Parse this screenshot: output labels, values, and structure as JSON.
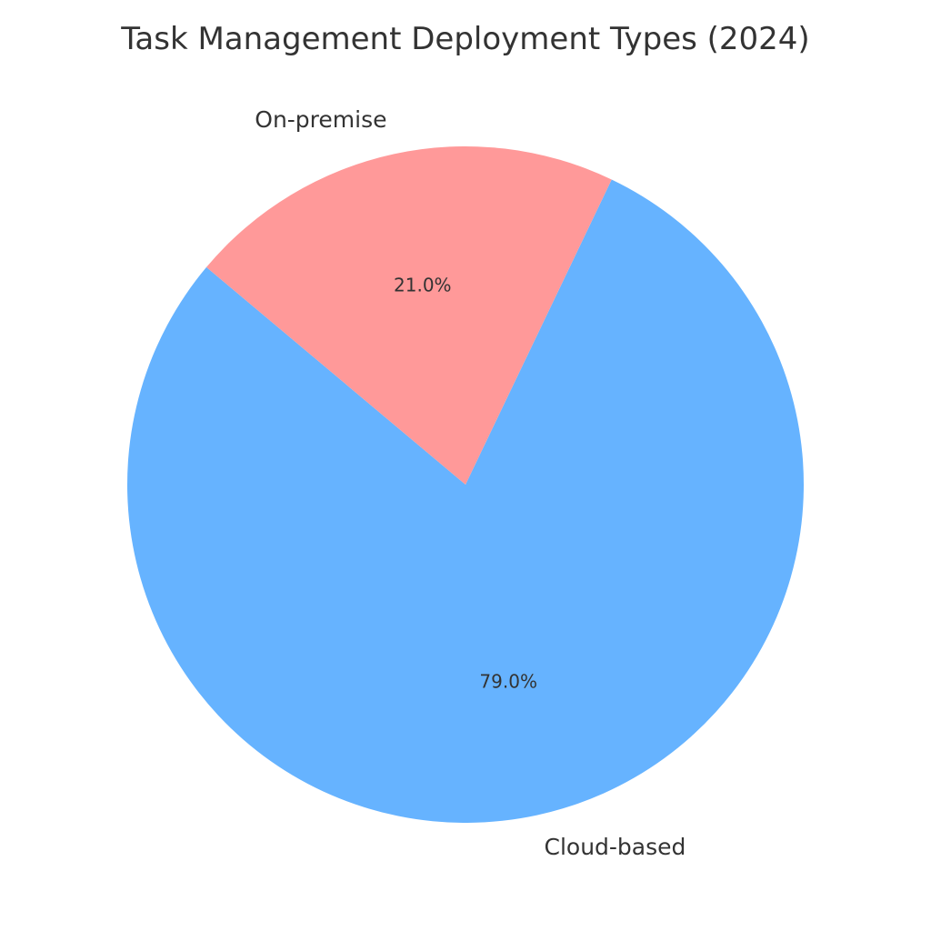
{
  "chart_data": {
    "type": "pie",
    "title": "Task Management Deployment Types (2024)",
    "slices": [
      {
        "label": "Cloud-based",
        "value": 79.0,
        "percent_label": "79.0%",
        "color": "#66b3ff"
      },
      {
        "label": "On-premise",
        "value": 21.0,
        "percent_label": "21.0%",
        "color": "#ff9999"
      }
    ],
    "start_angle_deg": 140,
    "direction": "counterclockwise",
    "legend": "none"
  }
}
